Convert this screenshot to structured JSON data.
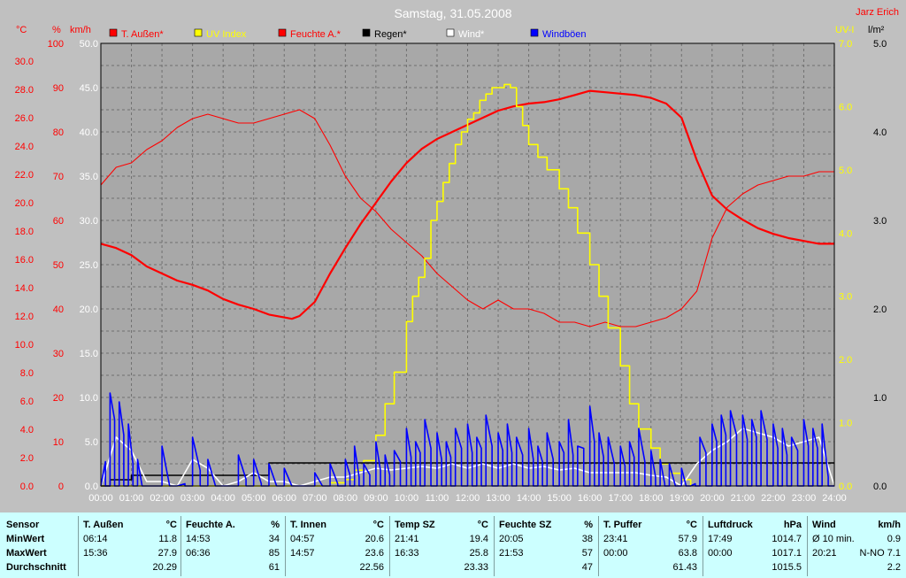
{
  "header": {
    "title": "Samstag, 31.05.2008",
    "author": "Jarz Erich"
  },
  "colors": {
    "background": "#c0c0c0",
    "plot": "#a8a8a8",
    "red": "#ff0000",
    "yellow": "#ffff00",
    "blue": "#0000ff",
    "white": "#ffffff",
    "black": "#000000",
    "table": "#ccffff"
  },
  "axis_units": {
    "temp": "°C",
    "hum": "%",
    "wind": "km/h",
    "uv": "UV-I",
    "rain": "l/m²"
  },
  "legend": [
    {
      "label": "T. Außen*",
      "color": "#ff0000"
    },
    {
      "label": "UV Index",
      "color": "#ffff00"
    },
    {
      "label": "Feuchte A.*",
      "color": "#ff0000"
    },
    {
      "label": "Regen*",
      "color": "#000000"
    },
    {
      "label": "Wind*",
      "color": "#ffffff"
    },
    {
      "label": "Windböen",
      "color": "#0000ff"
    }
  ],
  "chart_data": {
    "type": "line",
    "x_ticks": [
      "00:00",
      "01:00",
      "02:00",
      "03:00",
      "04:00",
      "05:00",
      "06:00",
      "07:00",
      "08:00",
      "09:00",
      "10:00",
      "11:00",
      "12:00",
      "13:00",
      "14:00",
      "15:00",
      "16:00",
      "17:00",
      "18:00",
      "19:00",
      "20:00",
      "21:00",
      "22:00",
      "23:00",
      "24:00"
    ],
    "y_axes": {
      "temp": {
        "ticks": [
          "0.0",
          "2.0",
          "4.0",
          "6.0",
          "8.0",
          "10.0",
          "12.0",
          "14.0",
          "16.0",
          "18.0",
          "20.0",
          "22.0",
          "24.0",
          "26.0",
          "28.0",
          "30.0"
        ],
        "range": [
          0,
          31.25
        ]
      },
      "hum": {
        "ticks": [
          "0",
          "10",
          "20",
          "30",
          "40",
          "50",
          "60",
          "70",
          "80",
          "90",
          "100"
        ],
        "range": [
          0,
          100
        ]
      },
      "wind": {
        "ticks": [
          "0.0",
          "5.0",
          "10.0",
          "15.0",
          "20.0",
          "25.0",
          "30.0",
          "35.0",
          "40.0",
          "45.0",
          "50.0"
        ],
        "range": [
          0,
          50
        ]
      },
      "uv": {
        "ticks": [
          "0.0",
          "1.0",
          "2.0",
          "3.0",
          "4.0",
          "5.0",
          "6.0",
          "7.0"
        ],
        "range": [
          0,
          7
        ]
      },
      "rain": {
        "ticks": [
          "0.0",
          "1.0",
          "2.0",
          "3.0",
          "4.0",
          "5.0"
        ],
        "range": [
          0,
          5
        ]
      }
    },
    "series": [
      {
        "name": "T. Außen*",
        "axis": "temp",
        "color": "#ff0000",
        "x": [
          0,
          0.5,
          1,
          1.5,
          2,
          2.5,
          3,
          3.5,
          4,
          4.5,
          5,
          5.5,
          6,
          6.25,
          6.5,
          7,
          7.5,
          8,
          8.5,
          9,
          9.5,
          10,
          10.5,
          11,
          11.5,
          12,
          12.5,
          13,
          13.5,
          14,
          14.5,
          15,
          15.5,
          16,
          16.5,
          17,
          17.5,
          18,
          18.5,
          19,
          19.5,
          20,
          20.5,
          21,
          21.5,
          22,
          22.5,
          23,
          23.5,
          24
        ],
        "y": [
          17.1,
          16.8,
          16.3,
          15.5,
          15.0,
          14.5,
          14.2,
          13.8,
          13.2,
          12.8,
          12.5,
          12.1,
          11.9,
          11.8,
          12.0,
          13.0,
          15.0,
          16.8,
          18.5,
          20.0,
          21.5,
          22.8,
          23.8,
          24.5,
          25.0,
          25.5,
          26.0,
          26.5,
          26.8,
          27.0,
          27.1,
          27.3,
          27.6,
          27.9,
          27.8,
          27.7,
          27.6,
          27.4,
          27.0,
          26.0,
          23.0,
          20.5,
          19.5,
          18.8,
          18.2,
          17.8,
          17.5,
          17.3,
          17.1,
          17.1
        ]
      },
      {
        "name": "Feuchte A.*",
        "axis": "hum",
        "color": "#ff0000",
        "x": [
          0,
          0.5,
          1,
          1.5,
          2,
          2.5,
          3,
          3.5,
          4,
          4.5,
          5,
          5.5,
          6,
          6.5,
          7,
          7.5,
          8,
          8.5,
          9,
          9.5,
          10,
          10.5,
          11,
          11.5,
          12,
          12.5,
          13,
          13.5,
          14,
          14.5,
          15,
          15.5,
          16,
          16.5,
          17,
          17.5,
          18,
          18.5,
          19,
          19.5,
          20,
          20.5,
          21,
          21.5,
          22,
          22.5,
          23,
          23.5,
          24
        ],
        "y": [
          68,
          72,
          73,
          76,
          78,
          81,
          83,
          84,
          83,
          82,
          82,
          83,
          84,
          85,
          83,
          77,
          70,
          65,
          62,
          58,
          55,
          52,
          48,
          45,
          42,
          40,
          42,
          40,
          40,
          39,
          37,
          37,
          36,
          37,
          36,
          36,
          37,
          38,
          40,
          44,
          56,
          63,
          66,
          68,
          69,
          70,
          70,
          71,
          71
        ]
      },
      {
        "name": "UV Index",
        "axis": "uv",
        "color": "#ffff00",
        "step": true,
        "x": [
          0,
          7.5,
          8,
          8.3,
          8.6,
          9,
          9.3,
          9.6,
          10,
          10.2,
          10.4,
          10.6,
          10.8,
          11,
          11.2,
          11.4,
          11.6,
          11.8,
          12,
          12.2,
          12.4,
          12.6,
          12.8,
          13,
          13.2,
          13.4,
          13.6,
          13.8,
          14,
          14.3,
          14.6,
          15,
          15.3,
          15.6,
          16,
          16.3,
          16.6,
          17,
          17.3,
          17.6,
          18,
          18.3,
          18.6,
          19,
          19.3
        ],
        "y": [
          0,
          0.05,
          0.1,
          0.25,
          0.4,
          0.8,
          1.3,
          1.8,
          2.6,
          3.0,
          3.3,
          3.6,
          4.2,
          4.5,
          4.8,
          5.1,
          5.4,
          5.6,
          5.8,
          5.9,
          6.1,
          6.2,
          6.3,
          6.3,
          6.35,
          6.3,
          6.0,
          5.7,
          5.4,
          5.2,
          5.0,
          4.7,
          4.4,
          4.0,
          3.5,
          3.0,
          2.5,
          1.9,
          1.3,
          0.9,
          0.6,
          0.35,
          0.2,
          0.1,
          0
        ]
      },
      {
        "name": "Regen*",
        "axis": "rain",
        "color": "#000000",
        "step": true,
        "x": [
          0,
          0.3,
          1,
          5,
          5.5,
          24
        ],
        "y": [
          0,
          0.07,
          0.12,
          0.12,
          0.26,
          0.26
        ]
      },
      {
        "name": "Wind*",
        "axis": "wind",
        "color": "#ffffff",
        "x": [
          0,
          0.5,
          1,
          1.5,
          2,
          2.5,
          3,
          3.5,
          4,
          4.5,
          5,
          5.5,
          6,
          6.5,
          7,
          7.5,
          8,
          8.5,
          9,
          9.5,
          10,
          10.5,
          11,
          11.5,
          12,
          12.5,
          13,
          13.5,
          14,
          14.5,
          15,
          15.5,
          16,
          16.5,
          17,
          17.5,
          18,
          18.5,
          19,
          19.5,
          20,
          20.5,
          21,
          21.5,
          22,
          22.5,
          23,
          23.5,
          24
        ],
        "y": [
          0,
          5.5,
          4.0,
          0.5,
          0.5,
          0,
          3.0,
          2.0,
          0,
          0.5,
          1.5,
          0.5,
          0.5,
          0,
          0.5,
          1.0,
          1.0,
          1.5,
          2.0,
          1.8,
          2.0,
          2.2,
          2.0,
          2.5,
          2.0,
          2.5,
          2.0,
          2.5,
          2.0,
          2.2,
          1.8,
          2.0,
          1.5,
          1.5,
          1.5,
          1.5,
          1.2,
          1.0,
          0,
          2.5,
          4.0,
          5.0,
          6.5,
          6.0,
          5.5,
          4.5,
          5.0,
          5.5,
          0
        ]
      },
      {
        "name": "Windböen",
        "axis": "wind",
        "color": "#0000ff",
        "type": "spikes",
        "x": [
          0,
          0.3,
          0.6,
          0.9,
          1.2,
          1.5,
          2,
          2.5,
          3,
          3.5,
          4,
          4.5,
          5,
          5.5,
          6,
          6.5,
          7,
          7.5,
          8,
          8.3,
          8.6,
          9,
          9.3,
          9.6,
          10,
          10.3,
          10.6,
          11,
          11.3,
          11.6,
          12,
          12.3,
          12.6,
          13,
          13.3,
          13.6,
          14,
          14.3,
          14.6,
          15,
          15.3,
          15.6,
          16,
          16.3,
          16.6,
          17,
          17.3,
          17.6,
          18,
          18.3,
          18.6,
          19,
          19.3,
          19.6,
          20,
          20.3,
          20.6,
          21,
          21.3,
          21.6,
          22,
          22.3,
          22.6,
          23,
          23.3,
          23.6,
          24
        ],
        "y": [
          0,
          10.5,
          9.5,
          7.0,
          3.0,
          0,
          4.5,
          0,
          5.5,
          3.0,
          0,
          3.5,
          3.0,
          2.5,
          2.0,
          0,
          1.5,
          2.5,
          3.0,
          4.5,
          2.5,
          5.0,
          3.5,
          4.0,
          6.5,
          5.0,
          7.5,
          6.0,
          5.0,
          6.5,
          7.0,
          5.5,
          8.0,
          6.0,
          7.0,
          5.5,
          6.5,
          4.5,
          6.0,
          5.0,
          7.5,
          4.5,
          9.0,
          6.0,
          5.5,
          4.5,
          5.0,
          6.5,
          4.0,
          3.0,
          2.5,
          2.0,
          0,
          5.5,
          7.0,
          8.0,
          8.5,
          8.0,
          7.5,
          8.5,
          7.0,
          6.5,
          5.5,
          7.5,
          6.5,
          7.0,
          0
        ]
      }
    ],
    "grid": true,
    "legend_position": "top"
  },
  "table": {
    "row_labels": [
      "Sensor",
      "MinWert",
      "MaxWert",
      "Durchschnitt"
    ],
    "columns": [
      {
        "name": "T. Außen",
        "unit": "°C",
        "min_time": "06:14",
        "min": "11.8",
        "max_time": "15:36",
        "max": "27.9",
        "avg": "20.29"
      },
      {
        "name": "Feuchte A.",
        "unit": "%",
        "min_time": "14:53",
        "min": "34",
        "max_time": "06:36",
        "max": "85",
        "avg": "61"
      },
      {
        "name": "T. Innen",
        "unit": "°C",
        "min_time": "04:57",
        "min": "20.6",
        "max_time": "14:57",
        "max": "23.6",
        "avg": "22.56"
      },
      {
        "name": "Temp SZ",
        "unit": "°C",
        "min_time": "21:41",
        "min": "19.4",
        "max_time": "16:33",
        "max": "25.8",
        "avg": "23.33"
      },
      {
        "name": "Feuchte SZ",
        "unit": "%",
        "min_time": "20:05",
        "min": "38",
        "max_time": "21:53",
        "max": "57",
        "avg": "47"
      },
      {
        "name": "T. Puffer",
        "unit": "°C",
        "min_time": "23:41",
        "min": "57.9",
        "max_time": "00:00",
        "max": "63.8",
        "avg": "61.43"
      },
      {
        "name": "Luftdruck",
        "unit": "hPa",
        "min_time": "17:49",
        "min": "1014.7",
        "max_time": "00:00",
        "max": "1017.1",
        "avg": "1015.5"
      },
      {
        "name": "Wind",
        "unit": "km/h",
        "min_time": "Ø 10 min.",
        "min": "0.9",
        "max_time": "20:21",
        "max": "N-NO 7.1",
        "avg": "2.2"
      }
    ]
  }
}
